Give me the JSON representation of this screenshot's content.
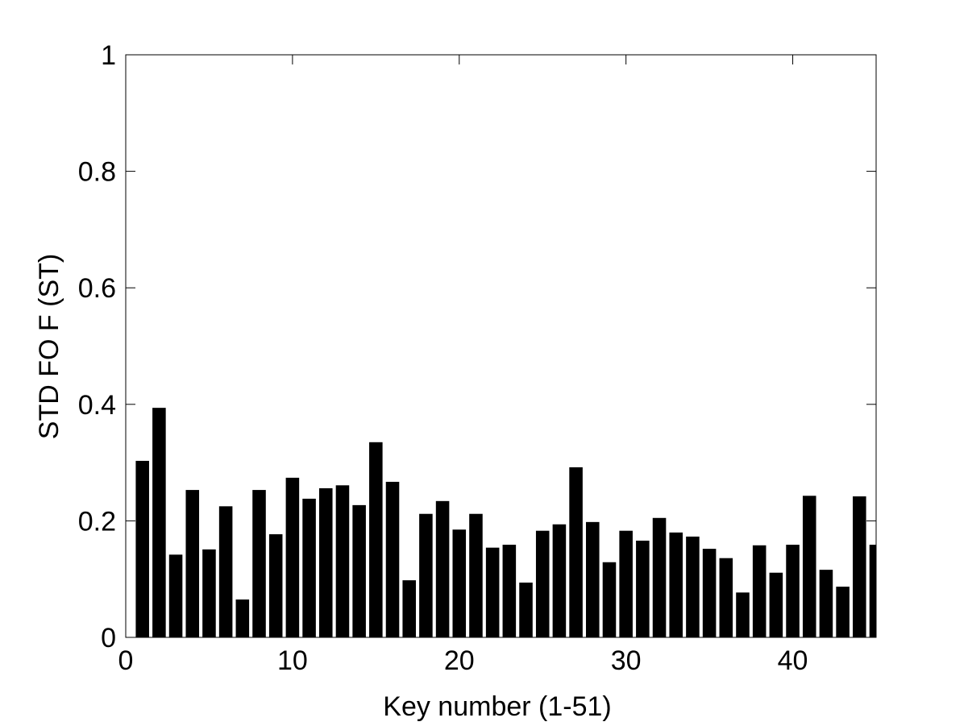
{
  "chart_data": {
    "type": "bar",
    "xlabel": "Key number (1-51)",
    "ylabel": "STD FO F (ST)",
    "x": [
      1,
      2,
      3,
      4,
      5,
      6,
      7,
      8,
      9,
      10,
      11,
      12,
      13,
      14,
      15,
      16,
      17,
      18,
      19,
      20,
      21,
      22,
      23,
      24,
      25,
      26,
      27,
      28,
      29,
      30,
      31,
      32,
      33,
      34,
      35,
      36,
      37,
      38,
      39,
      40,
      41,
      42,
      43,
      44,
      45
    ],
    "values": [
      0.303,
      0.394,
      0.142,
      0.253,
      0.151,
      0.225,
      0.065,
      0.253,
      0.177,
      0.274,
      0.238,
      0.256,
      0.261,
      0.227,
      0.335,
      0.267,
      0.098,
      0.212,
      0.234,
      0.185,
      0.212,
      0.154,
      0.159,
      0.094,
      0.183,
      0.194,
      0.292,
      0.198,
      0.129,
      0.183,
      0.166,
      0.205,
      0.18,
      0.173,
      0.152,
      0.136,
      0.077,
      0.158,
      0.111,
      0.159,
      0.243,
      0.116,
      0.087,
      0.242,
      0.159
    ],
    "color": "#000000",
    "xlim": [
      0,
      45
    ],
    "xticks": [
      0,
      10,
      20,
      30,
      40
    ],
    "ylim": [
      0,
      1
    ],
    "yticks": [
      0,
      0.2,
      0.4,
      0.6,
      0.8,
      1
    ]
  }
}
